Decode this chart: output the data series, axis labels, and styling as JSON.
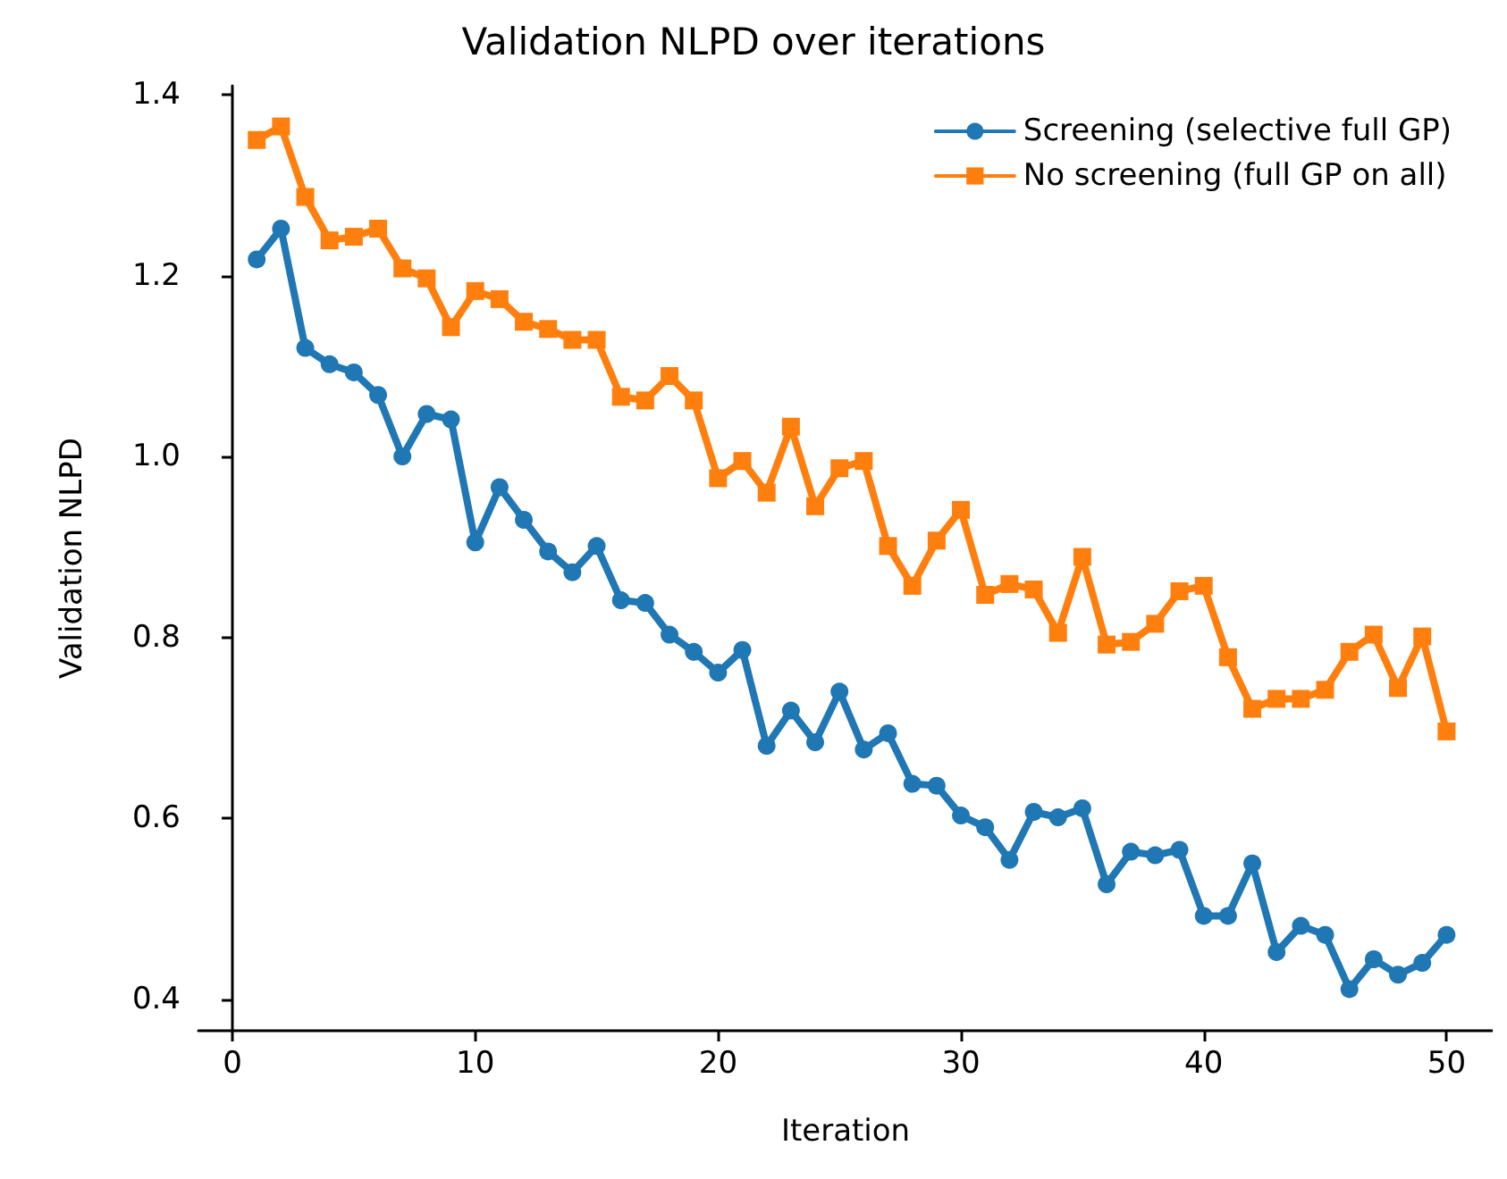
{
  "chart_data": {
    "type": "line",
    "title": "Validation NLPD over iterations",
    "xlabel": "Iteration",
    "ylabel": "Validation NLPD",
    "x": [
      1,
      2,
      3,
      4,
      5,
      6,
      7,
      8,
      9,
      10,
      11,
      12,
      13,
      14,
      15,
      16,
      17,
      18,
      19,
      20,
      21,
      22,
      23,
      24,
      25,
      26,
      27,
      28,
      29,
      30,
      31,
      32,
      33,
      34,
      35,
      36,
      37,
      38,
      39,
      40,
      41,
      42,
      43,
      44,
      45,
      46,
      47,
      48,
      49,
      50
    ],
    "series": [
      {
        "name": "Screening (selective full GP)",
        "color": "#1f77b4",
        "marker": "circle",
        "values": [
          1.218,
          1.252,
          1.12,
          1.102,
          1.093,
          1.068,
          1.0,
          1.047,
          1.041,
          0.905,
          0.966,
          0.93,
          0.895,
          0.872,
          0.901,
          0.841,
          0.838,
          0.803,
          0.784,
          0.761,
          0.786,
          0.68,
          0.719,
          0.684,
          0.74,
          0.676,
          0.694,
          0.638,
          0.636,
          0.603,
          0.59,
          0.554,
          0.607,
          0.601,
          0.611,
          0.527,
          0.563,
          0.559,
          0.565,
          0.492,
          0.492,
          0.55,
          0.452,
          0.481,
          0.471,
          0.411,
          0.444,
          0.427,
          0.44,
          0.471
        ]
      },
      {
        "name": "No screening (full GP on all)",
        "color": "#ff7f0e",
        "marker": "square",
        "values": [
          1.35,
          1.365,
          1.287,
          1.239,
          1.243,
          1.252,
          1.208,
          1.197,
          1.143,
          1.183,
          1.174,
          1.149,
          1.141,
          1.129,
          1.129,
          1.066,
          1.062,
          1.089,
          1.062,
          0.976,
          0.995,
          0.96,
          1.033,
          0.945,
          0.987,
          0.995,
          0.901,
          0.857,
          0.907,
          0.941,
          0.847,
          0.859,
          0.853,
          0.805,
          0.889,
          0.792,
          0.795,
          0.815,
          0.851,
          0.857,
          0.778,
          0.721,
          0.732,
          0.732,
          0.742,
          0.784,
          0.803,
          0.744,
          0.801,
          0.696
        ]
      }
    ],
    "xlim": [
      -1.4,
      51.9
    ],
    "xticks": [
      0,
      10,
      20,
      30,
      40,
      50
    ],
    "ylim": [
      0.365,
      1.41
    ],
    "yticks": [
      0.4,
      0.6,
      0.8,
      {
        "value": 1,
        "label": "1.0"
      },
      1.2,
      1.4
    ],
    "grid": false,
    "legend": "top right",
    "line_style": "solid"
  }
}
